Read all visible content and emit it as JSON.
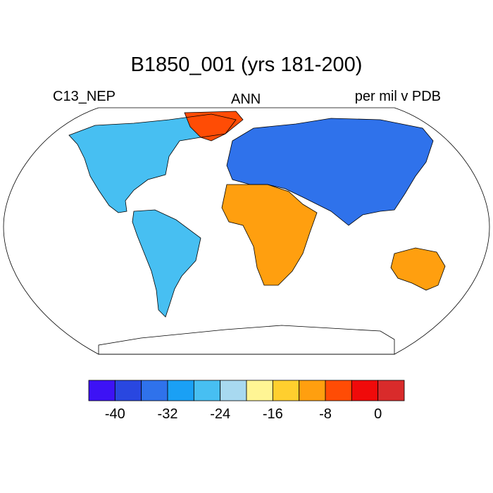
{
  "title": "B1850_001 (yrs 181-200)",
  "left_label": "C13_NEP",
  "center_label": "ANN",
  "right_label": "per mil v PDB",
  "colorbar": {
    "colors": [
      "#3d12f5",
      "#2947e0",
      "#2f72eb",
      "#1aa0f5",
      "#47bff2",
      "#a8d9f0",
      "#fff594",
      "#ffcf2e",
      "#ff9f0f",
      "#ff4c05",
      "#f00a0a",
      "#d92b2b"
    ],
    "tick_labels": [
      "-40",
      "-32",
      "-24",
      "-16",
      "-8",
      "0"
    ]
  },
  "map_layers": {
    "ocean": "#ffffff",
    "coastline": "#000000"
  }
}
